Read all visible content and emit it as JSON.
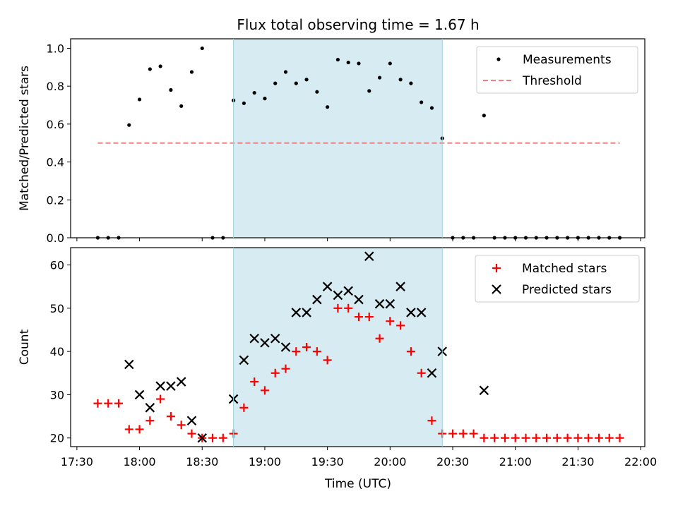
{
  "figure": {
    "title": "Flux total observing time = 1.67 h",
    "colors": {
      "threshold": "#f08080",
      "matched": "#ff0000",
      "predicted": "#000000",
      "shade": "#add8e6"
    },
    "x_axis": {
      "label": "Time (UTC)",
      "min": "17:27",
      "max": "22:02",
      "ticks": [
        "17:30",
        "18:00",
        "18:30",
        "19:00",
        "19:30",
        "20:00",
        "20:30",
        "21:00",
        "21:30",
        "22:00"
      ]
    }
  },
  "chart_data": [
    {
      "type": "scatter",
      "ylabel": "Matched/Predicted stars",
      "ylim": [
        0,
        1.05
      ],
      "yticks": [
        "0.0",
        "0.2",
        "0.4",
        "0.6",
        "0.8",
        "1.0"
      ],
      "shaded_span": [
        "18:45",
        "20:25"
      ],
      "legend": {
        "position": "top-right",
        "entries": [
          "Measurements",
          "Threshold"
        ]
      },
      "threshold": {
        "name": "Threshold",
        "y": 0.5,
        "x_range": [
          "17:40",
          "21:50"
        ]
      },
      "series": [
        {
          "name": "Measurements",
          "marker": "dot",
          "x": [
            "17:40",
            "17:45",
            "17:50",
            "17:55",
            "18:00",
            "18:05",
            "18:10",
            "18:15",
            "18:20",
            "18:25",
            "18:30",
            "18:35",
            "18:40",
            "18:45",
            "18:50",
            "18:55",
            "19:00",
            "19:05",
            "19:10",
            "19:15",
            "19:20",
            "19:25",
            "19:30",
            "19:35",
            "19:40",
            "19:45",
            "19:50",
            "19:55",
            "20:00",
            "20:05",
            "20:10",
            "20:15",
            "20:20",
            "20:25",
            "20:30",
            "20:35",
            "20:40",
            "20:45",
            "20:50",
            "20:55",
            "21:00",
            "21:05",
            "21:10",
            "21:15",
            "21:20",
            "21:25",
            "21:30",
            "21:35",
            "21:40",
            "21:45",
            "21:50"
          ],
          "y": [
            0,
            0,
            0,
            0.595,
            0.73,
            0.89,
            0.905,
            0.78,
            0.695,
            0.875,
            1.0,
            0,
            0,
            0.725,
            0.71,
            0.765,
            0.735,
            0.815,
            0.875,
            0.815,
            0.835,
            0.77,
            0.69,
            0.94,
            0.925,
            0.92,
            0.775,
            0.845,
            0.92,
            0.835,
            0.815,
            0.715,
            0.685,
            0.525,
            0,
            0,
            0,
            0.645,
            0,
            0,
            0,
            0,
            0,
            0,
            0,
            0,
            0,
            0,
            0,
            0,
            0
          ]
        }
      ]
    },
    {
      "type": "scatter",
      "ylabel": "Count",
      "ylim": [
        18,
        64
      ],
      "yticks": [
        "20",
        "30",
        "40",
        "50",
        "60"
      ],
      "shaded_span": [
        "18:45",
        "20:25"
      ],
      "legend": {
        "position": "top-right",
        "entries": [
          "Matched stars",
          "Predicted stars"
        ]
      },
      "series": [
        {
          "name": "Matched stars",
          "marker": "plus",
          "x": [
            "17:40",
            "17:45",
            "17:50",
            "17:55",
            "18:00",
            "18:05",
            "18:10",
            "18:15",
            "18:20",
            "18:25",
            "18:30",
            "18:35",
            "18:40",
            "18:45",
            "18:50",
            "18:55",
            "19:00",
            "19:05",
            "19:10",
            "19:15",
            "19:20",
            "19:25",
            "19:30",
            "19:35",
            "19:40",
            "19:45",
            "19:50",
            "19:55",
            "20:00",
            "20:05",
            "20:10",
            "20:15",
            "20:20",
            "20:25",
            "20:30",
            "20:35",
            "20:40",
            "20:45",
            "20:50",
            "20:55",
            "21:00",
            "21:05",
            "21:10",
            "21:15",
            "21:20",
            "21:25",
            "21:30",
            "21:35",
            "21:40",
            "21:45",
            "21:50"
          ],
          "y": [
            28,
            28,
            28,
            22,
            22,
            24,
            29,
            25,
            23,
            21,
            20,
            20,
            20,
            21,
            27,
            33,
            31,
            35,
            36,
            40,
            41,
            40,
            38,
            50,
            50,
            48,
            48,
            43,
            47,
            46,
            40,
            35,
            24,
            21,
            21,
            21,
            21,
            20,
            20,
            20,
            20,
            20,
            20,
            20,
            20,
            20,
            20,
            20,
            20,
            20,
            20
          ]
        },
        {
          "name": "Predicted stars",
          "marker": "x",
          "x": [
            "17:55",
            "18:00",
            "18:05",
            "18:10",
            "18:15",
            "18:20",
            "18:25",
            "18:30",
            "18:45",
            "18:50",
            "18:55",
            "19:00",
            "19:05",
            "19:10",
            "19:15",
            "19:20",
            "19:25",
            "19:30",
            "19:35",
            "19:40",
            "19:45",
            "19:50",
            "19:55",
            "20:00",
            "20:05",
            "20:10",
            "20:15",
            "20:20",
            "20:25",
            "20:45"
          ],
          "y": [
            37,
            30,
            27,
            32,
            32,
            33,
            24,
            20,
            29,
            38,
            43,
            42,
            43,
            41,
            49,
            49,
            52,
            55,
            53,
            54,
            52,
            62,
            51,
            51,
            55,
            49,
            49,
            35,
            40,
            31
          ]
        }
      ]
    }
  ]
}
